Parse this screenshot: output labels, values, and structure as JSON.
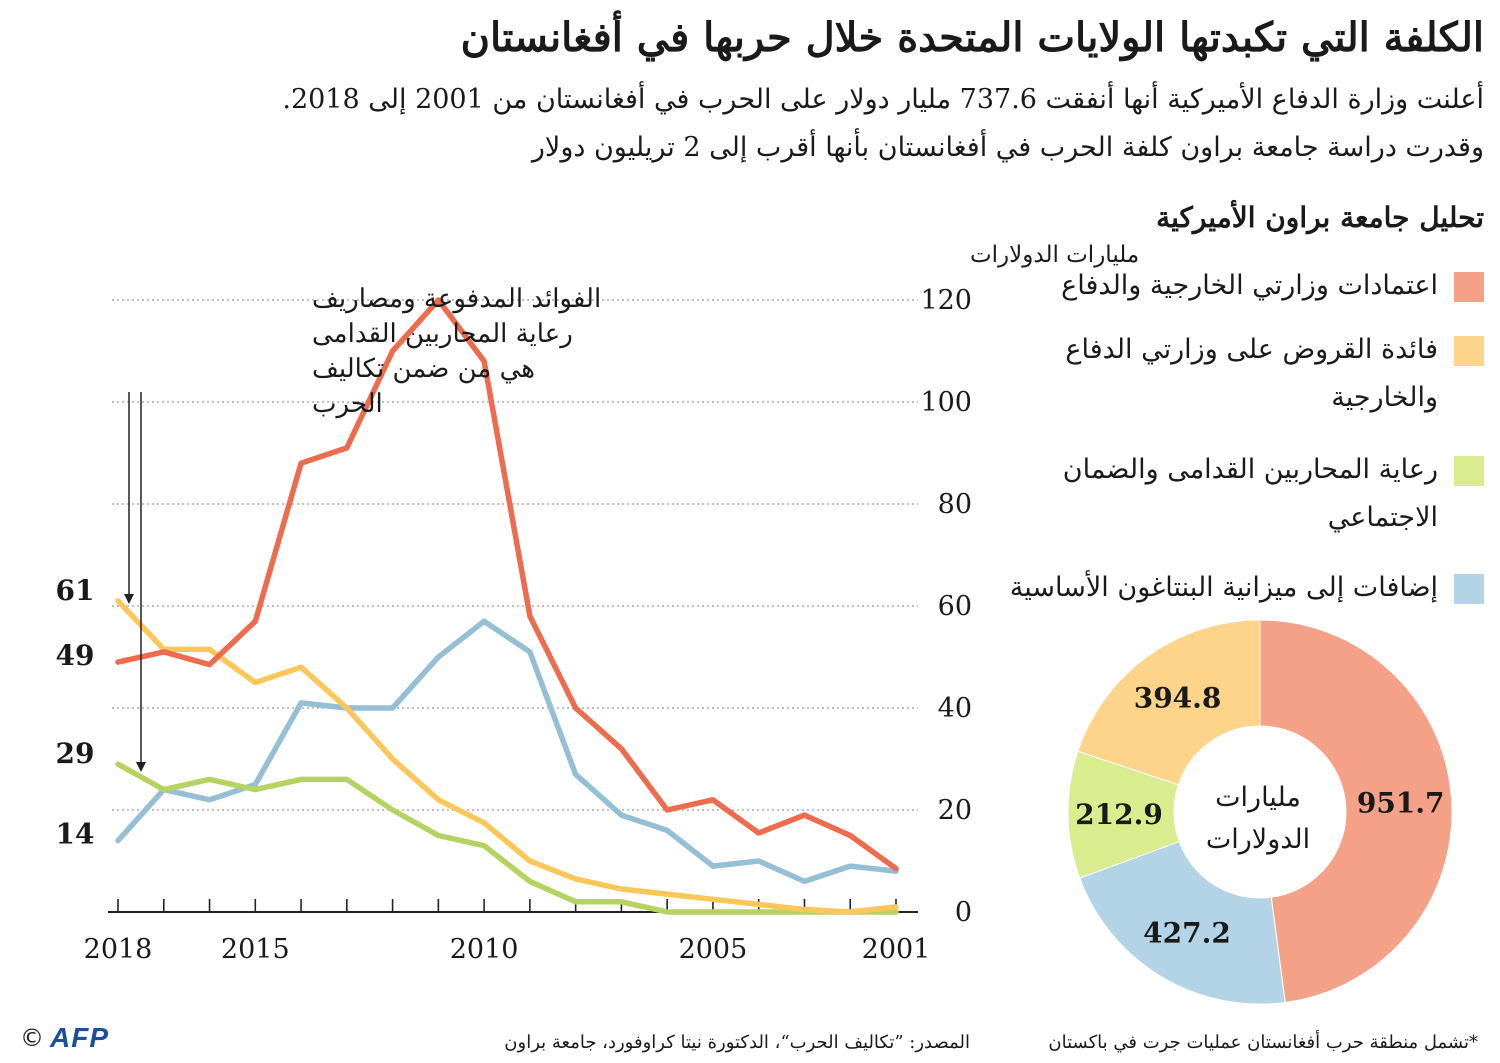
{
  "header": {
    "title": "الكلفة التي تكبدتها الولايات المتحدة خلال حربها في أفغانستان",
    "subtitle_line1": "أعلنت وزارة الدفاع الأميركية أنها أنفقت 737.6 مليار دولار على الحرب في أفغانستان من 2001 إلى 2018.",
    "subtitle_line2": "وقدرت دراسة جامعة براون كلفة الحرب في أفغانستان بأنها أقرب إلى 2 تريليون دولار"
  },
  "analysis": {
    "title": "تحليل جامعة براون الأميركية",
    "legend": [
      {
        "label": "اعتمادات وزارتي الخارجية والدفاع",
        "color": "#f4a187"
      },
      {
        "label": "فائدة القروض على وزارتي الدفاع والخارجية",
        "color": "#fdd48a"
      },
      {
        "label": "رعاية المحاربين القدامى والضمان الاجتماعي",
        "color": "#d9ec8e"
      },
      {
        "label": "إضافات إلى ميزانية البنتاغون الأساسية",
        "color": "#b3d4e6"
      }
    ]
  },
  "chart_data": [
    {
      "type": "line",
      "ylabel": "مليارات الدولارات",
      "ylim": [
        0,
        120
      ],
      "yticks": [
        0,
        20,
        40,
        60,
        80,
        100,
        120
      ],
      "xlim": [
        2001,
        2018
      ],
      "x_reversed": true,
      "xtick_labels": [
        "2001",
        "2005",
        "2010",
        "2015",
        "2018"
      ],
      "x": [
        2001,
        2002,
        2003,
        2004,
        2005,
        2006,
        2007,
        2008,
        2009,
        2010,
        2011,
        2012,
        2013,
        2014,
        2015,
        2016,
        2017,
        2018
      ],
      "series": [
        {
          "name": "اعتمادات وزارتي الخارجية والدفاع",
          "color": "#ec6c4d",
          "values": [
            8.5,
            15,
            19,
            15.5,
            22,
            20,
            32,
            40,
            58,
            108,
            120,
            110,
            91,
            88,
            57,
            48.5,
            51,
            49
          ]
        },
        {
          "name": "فائدة القروض على وزارتي الدفاع والخارجية",
          "color": "#fcc75a",
          "values": [
            1,
            0,
            0.5,
            1.5,
            2.5,
            3.5,
            4.5,
            6.5,
            10,
            17.5,
            22,
            30,
            40,
            48,
            45,
            51.5,
            51.5,
            61
          ]
        },
        {
          "name": "رعاية المحاربين القدامى والضمان الاجتماعي",
          "color": "#b5d360",
          "values": [
            0,
            0,
            0,
            0,
            0,
            0,
            2,
            2,
            6,
            13,
            15,
            20,
            26,
            26,
            24,
            26,
            24,
            29
          ]
        },
        {
          "name": "إضافات إلى ميزانية البنتاغون الأساسية",
          "color": "#95bfd4",
          "values": [
            8,
            9,
            6,
            10,
            9,
            16,
            19,
            27,
            51,
            57,
            50,
            40,
            40,
            41,
            25,
            22,
            24,
            14
          ]
        }
      ],
      "end_labels": [
        "61",
        "49",
        "29",
        "14"
      ],
      "annotation": "الفوائد المدفوعة ومصاريف رعاية المحاربين القدامى هي من ضمن تكاليف الحرب"
    },
    {
      "type": "pie",
      "center_label": "مليارات الدولارات",
      "slices": [
        {
          "name": "اعتمادات وزارتي الخارجية والدفاع",
          "value": 951.7,
          "label": "951.7",
          "color": "#f4a187"
        },
        {
          "name": "إضافات إلى ميزانية البنتاغون الأساسية",
          "value": 427.2,
          "label": "427.2",
          "color": "#b3d4e6"
        },
        {
          "name": "رعاية المحاربين القدامى والضمان الاجتماعي",
          "value": 212.9,
          "label": "212.9",
          "color": "#d9ec8e"
        },
        {
          "name": "فائدة القروض على وزارتي الدفاع والخارجية",
          "value": 394.8,
          "label": "394.8",
          "color": "#fdd48a"
        }
      ]
    }
  ],
  "footer": {
    "footnote": "*تشمل منطقة حرب أفغانستان عمليات جرت في باكستان",
    "source": "المصدر: ”تكاليف الحرب“، الدكتورة نيتا كراوفورد، جامعة براون",
    "copyright_symbol": "©",
    "logo_text": "AFP"
  }
}
